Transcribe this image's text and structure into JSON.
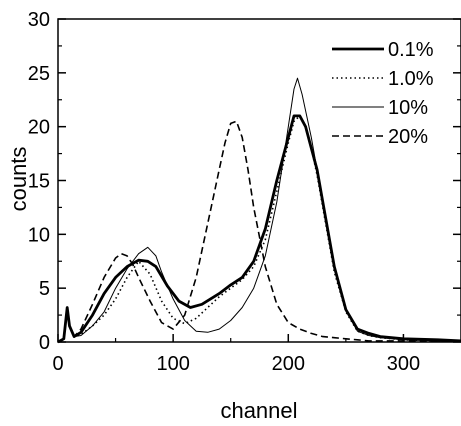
{
  "chart_data": {
    "type": "line",
    "xlabel": "channel",
    "ylabel": "counts",
    "xlim": [
      0,
      350
    ],
    "ylim": [
      0,
      30
    ],
    "x_ticks": [
      0,
      100,
      200,
      300
    ],
    "y_ticks": [
      0,
      5,
      10,
      15,
      20,
      25,
      30
    ],
    "grid": false,
    "legend_position": "top-right",
    "series": [
      {
        "name": "0.1%",
        "style": "thick-solid",
        "x": [
          0,
          5,
          8,
          10,
          14,
          20,
          30,
          40,
          50,
          60,
          70,
          78,
          85,
          95,
          105,
          115,
          125,
          140,
          150,
          160,
          170,
          180,
          190,
          200,
          205,
          210,
          215,
          220,
          225,
          230,
          240,
          250,
          260,
          270,
          280,
          300,
          330,
          350
        ],
        "y": [
          0,
          0.3,
          3.2,
          1.5,
          0.5,
          0.9,
          2.5,
          4.5,
          6,
          7,
          7.6,
          7.5,
          7,
          5.2,
          3.8,
          3.2,
          3.5,
          4.5,
          5.3,
          6,
          7.5,
          10.5,
          15,
          19,
          21,
          21,
          20,
          18,
          16,
          13,
          7,
          3,
          1.2,
          0.8,
          0.5,
          0.3,
          0.2,
          0.1
        ]
      },
      {
        "name": "1.0%",
        "style": "dotted",
        "x": [
          0,
          5,
          8,
          10,
          14,
          20,
          30,
          40,
          50,
          60,
          70,
          80,
          90,
          100,
          110,
          120,
          130,
          140,
          150,
          160,
          170,
          180,
          190,
          200,
          205,
          210,
          215,
          220,
          225,
          230,
          240,
          250,
          260,
          270,
          280,
          300,
          330,
          350
        ],
        "y": [
          0,
          0.3,
          3.2,
          1.5,
          0.5,
          0.7,
          1.5,
          2.5,
          4,
          6,
          7.5,
          6.3,
          3.8,
          2.2,
          1.7,
          2.2,
          3.2,
          4.2,
          5,
          5.8,
          7,
          9.5,
          14,
          18.5,
          20.5,
          21,
          20,
          18,
          15.5,
          12.5,
          6.5,
          2.8,
          1,
          0.6,
          0.4,
          0.2,
          0.1,
          0.1
        ]
      },
      {
        "name": "10%",
        "style": "thin-solid",
        "x": [
          0,
          5,
          8,
          10,
          14,
          20,
          30,
          40,
          50,
          60,
          70,
          78,
          85,
          90,
          100,
          110,
          120,
          130,
          140,
          150,
          160,
          170,
          180,
          190,
          200,
          205,
          208,
          212,
          216,
          220,
          230,
          240,
          250,
          260,
          270,
          280,
          300,
          330,
          350
        ],
        "y": [
          0,
          0.3,
          3.2,
          1.5,
          0.5,
          0.6,
          1.5,
          2.8,
          5,
          6.8,
          8.2,
          8.8,
          8,
          6.5,
          4,
          2,
          1,
          0.9,
          1.2,
          2,
          3.2,
          5,
          8,
          13,
          20,
          23.5,
          24.5,
          23,
          21,
          19,
          13,
          7,
          3,
          1,
          0.6,
          0.4,
          0.2,
          0.1,
          0.1
        ]
      },
      {
        "name": "20%",
        "style": "dashed",
        "x": [
          0,
          5,
          8,
          10,
          14,
          20,
          30,
          40,
          50,
          55,
          60,
          65,
          70,
          80,
          90,
          100,
          110,
          120,
          130,
          140,
          145,
          150,
          155,
          160,
          165,
          170,
          180,
          190,
          200,
          210,
          220,
          230,
          240,
          250,
          260,
          270,
          300,
          350
        ],
        "y": [
          0,
          0.3,
          3.2,
          1.5,
          0.5,
          1.2,
          3.5,
          6,
          7.8,
          8.2,
          8,
          7.2,
          6,
          3.8,
          1.8,
          1.2,
          2.5,
          6,
          11,
          16,
          18.5,
          20.3,
          20.5,
          19,
          16,
          12.5,
          7,
          3.5,
          1.8,
          1.2,
          0.8,
          0.5,
          0.4,
          0.3,
          0.2,
          0.1,
          0.1,
          0.1
        ]
      }
    ]
  }
}
